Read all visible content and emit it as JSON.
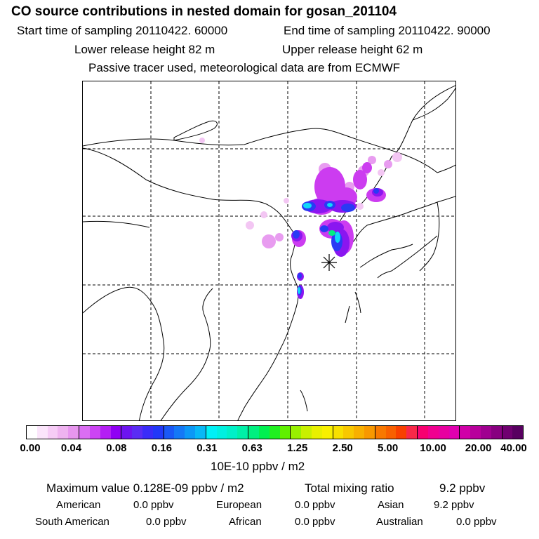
{
  "header": {
    "title": "CO  source contributions in nested domain for gosan_201104",
    "start_time": "Start time of sampling 20110422. 60000",
    "end_time": "End time of sampling 20110422. 90000",
    "lower_height": "Lower release height   82 m",
    "upper_height": "Upper release height   62 m",
    "tracer_note": "Passive tracer used, meteorological data are from ECMWF"
  },
  "colorbar": {
    "tick_labels": [
      "0.00",
      "0.04",
      "0.08",
      "0.16",
      "0.31",
      "0.63",
      "1.25",
      "2.50",
      "5.00",
      "10.00",
      "20.00",
      "40.00"
    ],
    "colors": [
      "#ffffff",
      "#fbe5fb",
      "#f6ccf6",
      "#efb3f0",
      "#e796ee",
      "#db6ef3",
      "#cc44f4",
      "#b41ff4",
      "#9000f4",
      "#6d14f0",
      "#5a2cf4",
      "#3a2cf8",
      "#2238f8",
      "#1a58f6",
      "#1478f6",
      "#0c98f6",
      "#08b8f6",
      "#00f0f6",
      "#00f0e0",
      "#00f0c8",
      "#00f0a8",
      "#00f080",
      "#00f050",
      "#20f020",
      "#60f000",
      "#98f000",
      "#c8f000",
      "#e8f000",
      "#f8f000",
      "#f8e000",
      "#f8c800",
      "#f8b000",
      "#f89800",
      "#f87800",
      "#f86000",
      "#f84000",
      "#f82848",
      "#f80070",
      "#f00090",
      "#e800a0",
      "#e000b0",
      "#d000a8",
      "#b8009c",
      "#a00090",
      "#880080",
      "#700070",
      "#580060"
    ],
    "units": "10E-10 ppbv / m2"
  },
  "footer": {
    "max_label": "Maximum value  0.128E-09 ppbv / m2",
    "total_label": "Total mixing ratio",
    "total_value": "9.2 ppbv",
    "contributions": [
      {
        "region": "American",
        "value": "0.0 ppbv"
      },
      {
        "region": "European",
        "value": "0.0 ppbv"
      },
      {
        "region": "Asian",
        "value": "9.2 ppbv"
      },
      {
        "region": "South American",
        "value": "0.0 ppbv"
      },
      {
        "region": "African",
        "value": "0.0 ppbv"
      },
      {
        "region": "Australian",
        "value": "0.0 ppbv"
      }
    ]
  },
  "map": {
    "receptor_marker": "asterisk-icon",
    "colors": {
      "pale": "#f3c6f3",
      "light": "#e89cf0",
      "magenta": "#cc3cf0",
      "purple": "#8a16f0",
      "blue": "#2a3af4",
      "cyan": "#10d8f8",
      "green": "#00f080"
    }
  }
}
